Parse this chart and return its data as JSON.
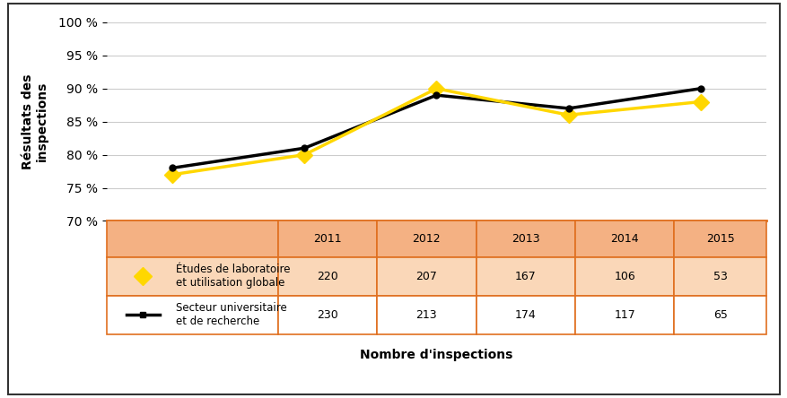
{
  "years": [
    2011,
    2012,
    2013,
    2014,
    2015
  ],
  "etudes_labo": [
    77,
    80,
    90,
    86,
    88
  ],
  "secteur_univ": [
    78,
    81,
    89,
    87,
    90
  ],
  "etudes_counts": [
    220,
    207,
    167,
    106,
    53
  ],
  "secteur_counts": [
    230,
    213,
    174,
    117,
    65
  ],
  "ylim": [
    70,
    100
  ],
  "yticks": [
    70,
    75,
    80,
    85,
    90,
    95,
    100
  ],
  "ylabel": "Résultats des\ninspections",
  "xlabel": "Nombre d'inspections",
  "line1_label": "Études de laboratoire\net utilisation globale",
  "line2_label": "Secteur universitaire\net de recherche",
  "line1_color": "#FFD700",
  "line2_color": "#000000",
  "table_header_bg": "#F4B183",
  "table_row1_bg": "#FAD7B8",
  "table_row2_bg": "#FFFFFF",
  "table_border_color": "#E07020",
  "chart_bg": "#FFFFFF",
  "grid_color": "#CCCCCC",
  "outer_border_color": "#333333"
}
